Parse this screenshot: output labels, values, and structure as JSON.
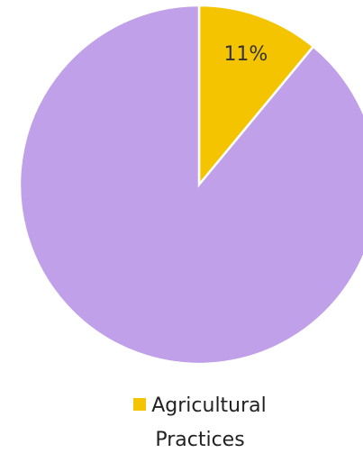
{
  "chart_data": {
    "type": "pie",
    "categories": [
      "Agricultural Practices",
      null
    ],
    "values": [
      11,
      89
    ],
    "value_labels": [
      "11%",
      null
    ],
    "colors": [
      "#f5c400",
      "#c0a0e8"
    ],
    "legend": "bottom"
  }
}
